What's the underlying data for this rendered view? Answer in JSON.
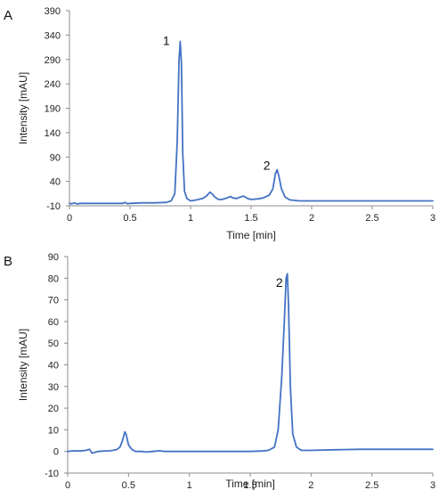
{
  "colors": {
    "trace": "#4472c4",
    "axis": "#8c8c8c",
    "text": "#222222"
  },
  "chart_data": [
    {
      "type": "line",
      "panel_label": "A",
      "xlabel": "Time [min]",
      "ylabel": "Intensity [mAU]",
      "xlim": [
        0,
        3
      ],
      "ylim": [
        -10,
        390
      ],
      "x_ticks": [
        "0",
        "0.5",
        "1",
        "1.5",
        "2",
        "2.5",
        "3"
      ],
      "y_ticks": [
        "-10",
        "40",
        "90",
        "140",
        "190",
        "240",
        "290",
        "340",
        "390"
      ],
      "grid": false,
      "annotations": [
        {
          "text": "1",
          "x": 0.8,
          "y": 320
        },
        {
          "text": "2",
          "x": 1.63,
          "y": 64
        }
      ],
      "series": [
        {
          "x": [
            0,
            0.02,
            0.04,
            0.06,
            0.1,
            0.2,
            0.3,
            0.4,
            0.44,
            0.46,
            0.48,
            0.5,
            0.6,
            0.7,
            0.8,
            0.84,
            0.87,
            0.89,
            0.905,
            0.915,
            0.925,
            0.935,
            0.95,
            0.97,
            1.0,
            1.05,
            1.1,
            1.13,
            1.16,
            1.18,
            1.2,
            1.23,
            1.26,
            1.3,
            1.33,
            1.35,
            1.38,
            1.41,
            1.44,
            1.47,
            1.5,
            1.55,
            1.6,
            1.65,
            1.68,
            1.7,
            1.715,
            1.73,
            1.75,
            1.78,
            1.82,
            1.9,
            2.0,
            2.2,
            2.4,
            2.6,
            2.8,
            3.0
          ],
          "y": [
            -5,
            -6,
            -4,
            -6,
            -5,
            -5,
            -5,
            -5,
            -5,
            -3,
            -6,
            -5,
            -4,
            -4,
            -3,
            0,
            15,
            120,
            290,
            327,
            280,
            100,
            20,
            5,
            0,
            2,
            5,
            10,
            18,
            14,
            8,
            3,
            3,
            6,
            9,
            6,
            5,
            8,
            10,
            5,
            3,
            4,
            6,
            12,
            25,
            55,
            64,
            50,
            25,
            8,
            2,
            0,
            0,
            0,
            0,
            0,
            0,
            0
          ]
        }
      ]
    },
    {
      "type": "line",
      "panel_label": "B",
      "xlabel": "Time [min]",
      "ylabel": "Intensity [mAU]",
      "xlim": [
        0,
        3
      ],
      "ylim": [
        -10,
        90
      ],
      "x_ticks": [
        "0",
        "0.5",
        "1",
        "1.5",
        "2",
        "2.5",
        "3"
      ],
      "y_ticks": [
        "-10",
        "0",
        "10",
        "20",
        "30",
        "40",
        "50",
        "60",
        "70",
        "80",
        "90"
      ],
      "grid": false,
      "annotations": [
        {
          "text": "2",
          "x": 1.74,
          "y": 76
        }
      ],
      "series": [
        {
          "x": [
            0,
            0.05,
            0.1,
            0.15,
            0.18,
            0.2,
            0.22,
            0.25,
            0.3,
            0.35,
            0.4,
            0.43,
            0.45,
            0.47,
            0.48,
            0.5,
            0.53,
            0.56,
            0.6,
            0.65,
            0.7,
            0.75,
            0.8,
            0.9,
            1.0,
            1.1,
            1.2,
            1.3,
            1.4,
            1.5,
            1.6,
            1.65,
            1.7,
            1.73,
            1.76,
            1.78,
            1.795,
            1.805,
            1.815,
            1.83,
            1.85,
            1.88,
            1.92,
            2.0,
            2.2,
            2.4,
            2.6,
            2.8,
            3.0
          ],
          "y": [
            0,
            0.3,
            0.2,
            0.5,
            1.0,
            -0.8,
            -0.5,
            0,
            0.2,
            0.3,
            0.8,
            2,
            5,
            9,
            8,
            3,
            0.8,
            0,
            0,
            -0.3,
            0,
            0.3,
            0,
            0,
            0,
            0,
            0,
            0,
            0,
            0,
            0.2,
            0.5,
            2,
            10,
            35,
            60,
            80,
            82,
            68,
            30,
            8,
            2,
            0.5,
            0.5,
            0.8,
            1.0,
            1.0,
            1.0,
            1.0
          ]
        }
      ]
    }
  ]
}
